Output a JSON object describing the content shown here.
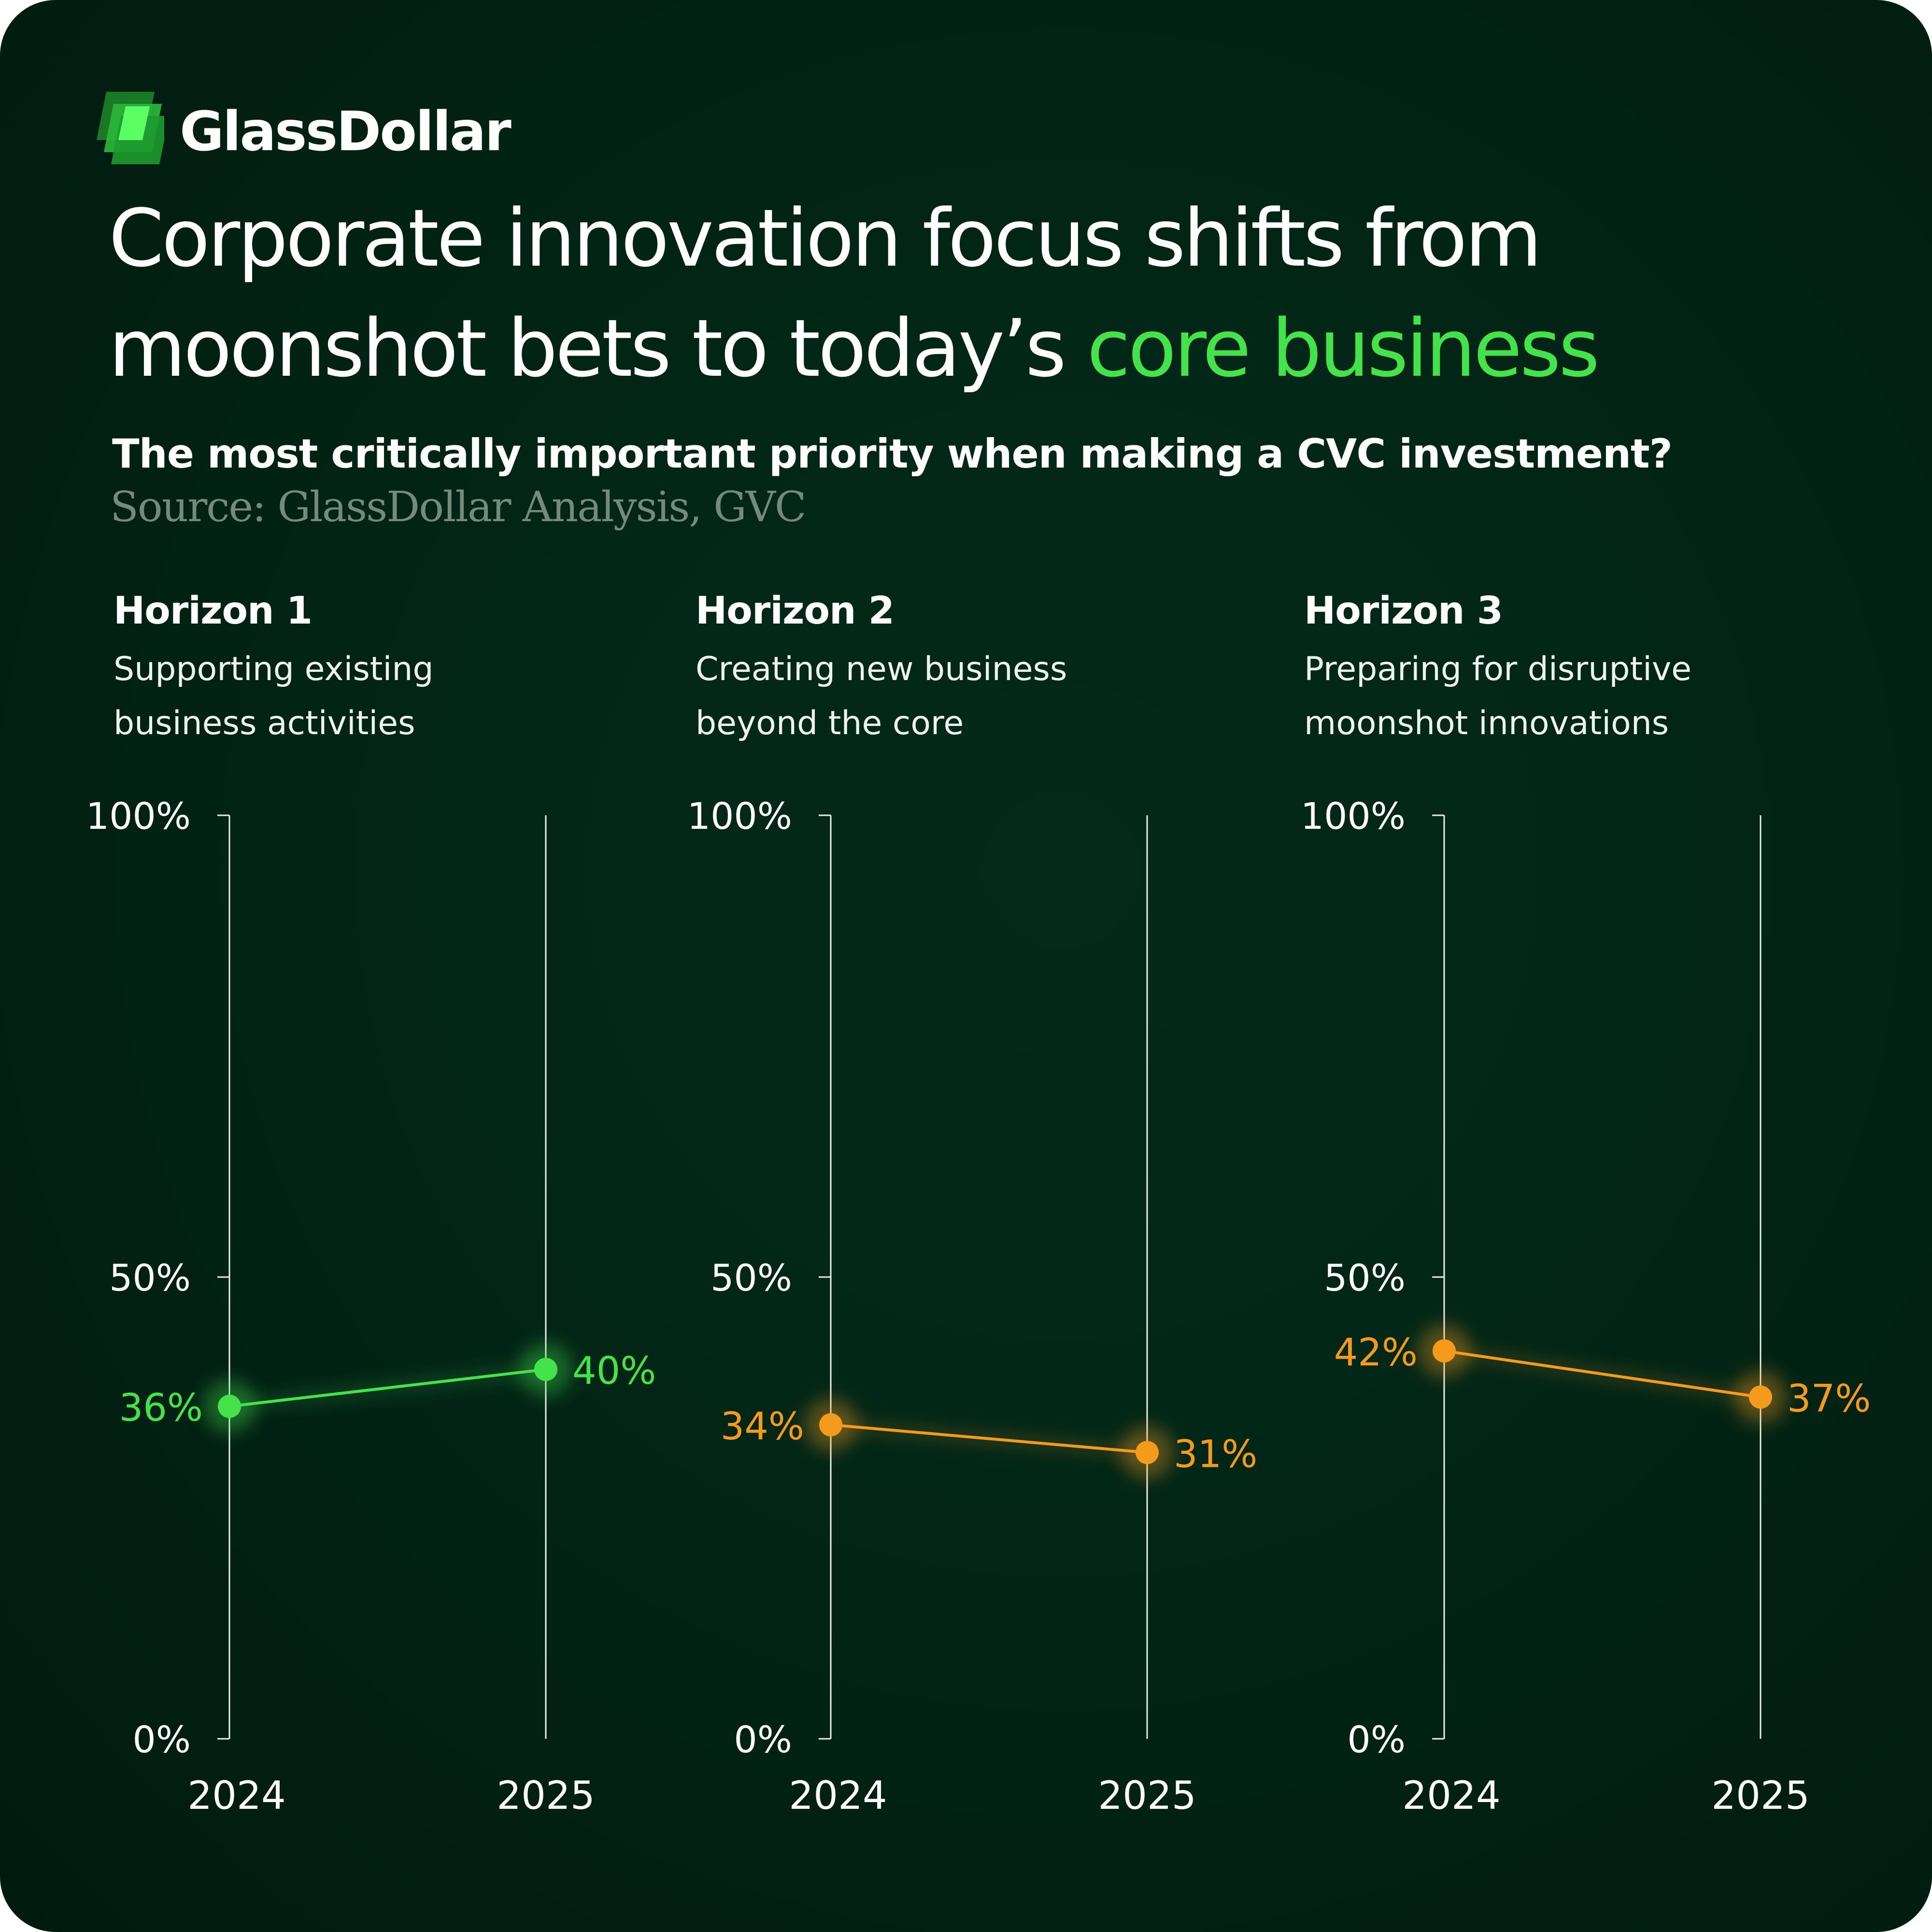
{
  "brand": {
    "name": "GlassDollar",
    "logo_icon": "stacked-green-squares-icon",
    "accent_color": "#44e34c",
    "secondary_color": "#f59b1c"
  },
  "headline": {
    "part1": "Corporate innovation focus shifts from",
    "part2": "moonshot bets to today’s ",
    "highlight": "core business"
  },
  "subtitle": "The most critically important priority when making a CVC investment?",
  "source": "Source: GlassDollar Analysis, GVC",
  "chart_data": [
    {
      "type": "line",
      "title": "Horizon 1",
      "subtitle": "Supporting existing business activities",
      "desc_line1": "Supporting existing",
      "desc_line2": "business activities",
      "x": [
        "2024",
        "2025"
      ],
      "values": [
        36,
        40
      ],
      "value_labels": [
        "36%",
        "40%"
      ],
      "yticks": [
        "100%",
        "50%",
        "0%"
      ],
      "ylim": [
        0,
        100
      ],
      "color": "#44e34c"
    },
    {
      "type": "line",
      "title": "Horizon 2",
      "subtitle": "Creating new business beyond the core",
      "desc_line1": "Creating new business",
      "desc_line2": "beyond the core",
      "x": [
        "2024",
        "2025"
      ],
      "values": [
        34,
        31
      ],
      "value_labels": [
        "34%",
        "31%"
      ],
      "yticks": [
        "100%",
        "50%",
        "0%"
      ],
      "ylim": [
        0,
        100
      ],
      "color": "#f59b1c"
    },
    {
      "type": "line",
      "title": "Horizon 3",
      "subtitle": "Preparing for disruptive moonshot innovations",
      "desc_line1": "Preparing for disruptive",
      "desc_line2": "moonshot innovations",
      "x": [
        "2024",
        "2025"
      ],
      "values": [
        42,
        37
      ],
      "value_labels": [
        "42%",
        "37%"
      ],
      "yticks": [
        "100%",
        "50%",
        "0%"
      ],
      "ylim": [
        0,
        100
      ],
      "color": "#f59b1c"
    }
  ]
}
